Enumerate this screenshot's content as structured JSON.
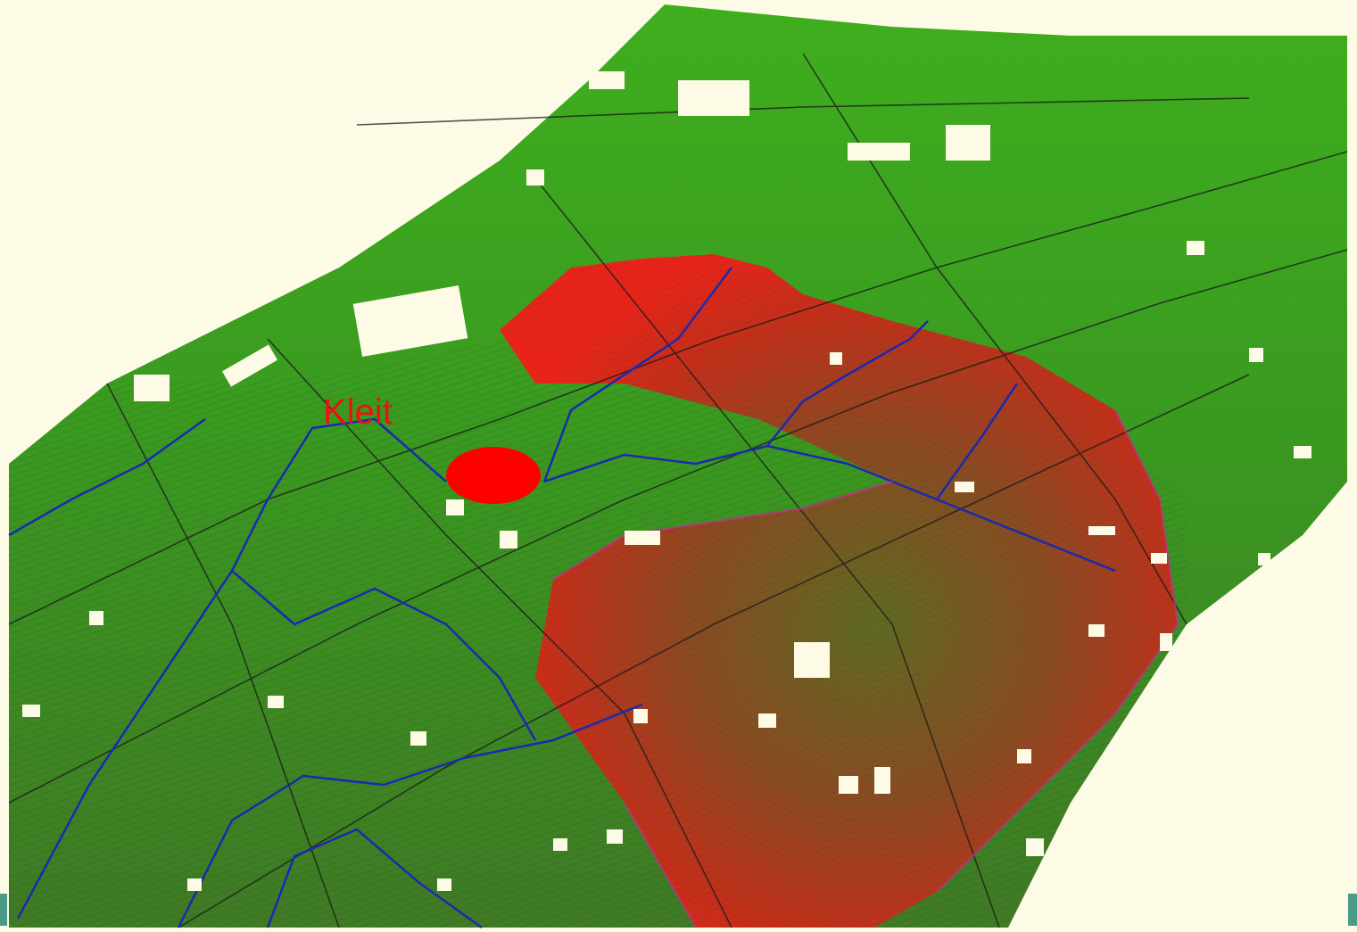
{
  "map": {
    "label": "Kleit"
  }
}
